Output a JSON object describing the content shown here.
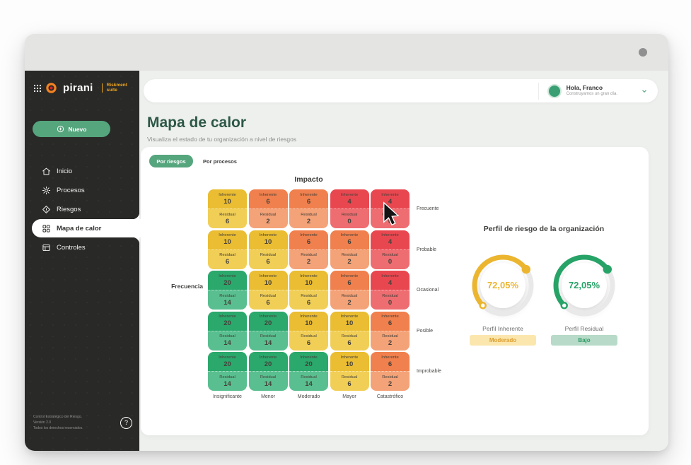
{
  "sidebar": {
    "logo": {
      "brand": "pirani",
      "suffix_line1": "Riskment",
      "suffix_line2": "suite"
    },
    "new_button": "Nuevo",
    "items": [
      {
        "label": "Inicio",
        "icon": "home-icon",
        "active": false
      },
      {
        "label": "Procesos",
        "icon": "processes-icon",
        "active": false
      },
      {
        "label": "Riesgos",
        "icon": "risks-icon",
        "active": false
      },
      {
        "label": "Mapa de calor",
        "icon": "heatmap-icon",
        "active": true
      },
      {
        "label": "Controles",
        "icon": "controls-icon",
        "active": false
      }
    ],
    "footer": {
      "line1": "Control Estratégico del Riesgo,",
      "line2": "Versión 2.0",
      "line3": "Todos los derechos reservados.",
      "help": "?"
    }
  },
  "header": {
    "greeting": "Hola, Franco",
    "subgreeting": "Construyamos un gran día."
  },
  "page": {
    "title": "Mapa de calor",
    "subtitle": "Visualiza el estado de tu organización a nivel de riesgos"
  },
  "tabs": [
    {
      "label": "Por riesgos",
      "active": true
    },
    {
      "label": "Por procesos",
      "active": false
    }
  ],
  "heatmap": {
    "title_top": "Impacto",
    "title_left": "Frecuencia",
    "cell_top_label": "Inherente",
    "cell_bottom_label": "Residual",
    "row_labels": [
      "Frecuente",
      "Probable",
      "Ocasional",
      "Posible",
      "Improbable"
    ],
    "col_labels": [
      "Insignificante",
      "Menor",
      "Moderado",
      "Mayor",
      "Catastrófico"
    ],
    "palette": {
      "green_top": "#2ba86c",
      "green_bottom": "#5abf90",
      "yellow_top": "#eabd32",
      "yellow_bottom": "#f1cf57",
      "orange_top": "#f0804d",
      "orange_bottom": "#f4a278",
      "red_top": "#e94750",
      "red_bottom": "#ee6d71"
    },
    "rows": [
      [
        {
          "c": "yellow",
          "i": 10,
          "r": 6
        },
        {
          "c": "orange",
          "i": 6,
          "r": 2
        },
        {
          "c": "orange",
          "i": 6,
          "r": 2
        },
        {
          "c": "red",
          "i": 4,
          "r": 0
        },
        {
          "c": "red",
          "i": 4,
          "r": 0
        }
      ],
      [
        {
          "c": "yellow",
          "i": 10,
          "r": 6
        },
        {
          "c": "yellow",
          "i": 10,
          "r": 6
        },
        {
          "c": "orange",
          "i": 6,
          "r": 2
        },
        {
          "c": "orange",
          "i": 6,
          "r": 2
        },
        {
          "c": "red",
          "i": 4,
          "r": 0
        }
      ],
      [
        {
          "c": "green",
          "i": 20,
          "r": 14
        },
        {
          "c": "yellow",
          "i": 10,
          "r": 6
        },
        {
          "c": "yellow",
          "i": 10,
          "r": 6
        },
        {
          "c": "orange",
          "i": 6,
          "r": 2
        },
        {
          "c": "red",
          "i": 4,
          "r": 0
        }
      ],
      [
        {
          "c": "green",
          "i": 20,
          "r": 14
        },
        {
          "c": "green",
          "i": 20,
          "r": 14
        },
        {
          "c": "yellow",
          "i": 10,
          "r": 6
        },
        {
          "c": "yellow",
          "i": 10,
          "r": 6
        },
        {
          "c": "orange",
          "i": 6,
          "r": 2
        }
      ],
      [
        {
          "c": "green",
          "i": 20,
          "r": 14
        },
        {
          "c": "green",
          "i": 20,
          "r": 14
        },
        {
          "c": "green",
          "i": 20,
          "r": 14
        },
        {
          "c": "yellow",
          "i": 10,
          "r": 6
        },
        {
          "c": "orange",
          "i": 6,
          "r": 2
        }
      ]
    ]
  },
  "profile": {
    "title": "Perfil de riesgo de la organización",
    "gauges": [
      {
        "value": "72,05%",
        "percent": 72.05,
        "label": "Perfil Inherente",
        "badge": "Moderado",
        "color": "#ecb52f",
        "badge_bg": "#fbe7ae",
        "badge_text": "#dd9e2f"
      },
      {
        "value": "72,05%",
        "percent": 72.05,
        "label": "Perfil Residual",
        "badge": "Bajo",
        "color": "#27a367",
        "badge_bg": "#b7dbc8",
        "badge_text": "#2f9b66"
      }
    ]
  },
  "colors": {
    "accent_green": "#55a57d",
    "sidebar_bg": "#292927",
    "title_green": "#2d5847"
  }
}
